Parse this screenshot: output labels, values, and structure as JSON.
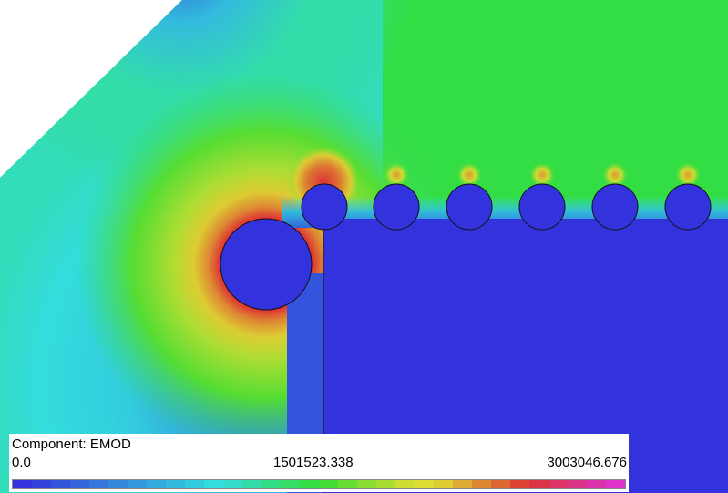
{
  "legend": {
    "component_label": "Component: EMOD",
    "min_value": "0.0",
    "mid_value": "1501523.338",
    "max_value": "3003046.676",
    "color_scale": [
      "#3333dd",
      "#3344dd",
      "#3355dd",
      "#3366dd",
      "#3377dd",
      "#3388dd",
      "#3399dd",
      "#33aadd",
      "#33bbdd",
      "#33ccdd",
      "#33dddd",
      "#33ddcc",
      "#33ddaa",
      "#33dd88",
      "#33dd66",
      "#33dd44",
      "#44dd33",
      "#66dd33",
      "#88dd33",
      "#aadd33",
      "#ccdd33",
      "#dddd33",
      "#ddcc33",
      "#ddaa33",
      "#dd8833",
      "#dd6633",
      "#dd4433",
      "#dd3344",
      "#dd3366",
      "#dd3388",
      "#dd33aa",
      "#dd33cc"
    ]
  },
  "colors": {
    "background": "#ffffff",
    "field_far": "#2fd94a",
    "field_low": "#3333dd",
    "field_mid": "#33cccc",
    "concentration": "#e03030"
  }
}
